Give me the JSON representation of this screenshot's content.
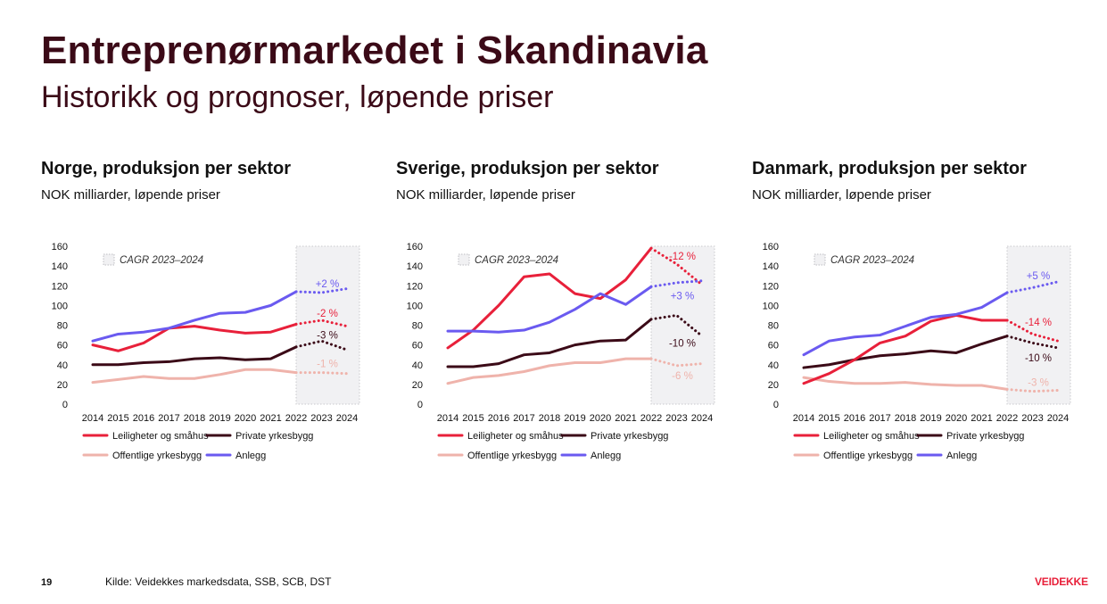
{
  "header": {
    "title": "Entreprenørmarkedet i Skandinavia",
    "subtitle": "Historikk og prognoser, løpende priser"
  },
  "footer": {
    "page_number": "19",
    "source": "Kilde: Veidekkes markedsdata, SSB, SCB, DST",
    "logo": "VEIDEKKE"
  },
  "colors": {
    "leiligheter": "#e8203a",
    "private": "#3b0a17",
    "offentlige": "#efb3ab",
    "anlegg": "#6a5af0",
    "forecast_band": "#f1f1f3"
  },
  "chart_data": [
    {
      "type": "line",
      "title": "Norge, produksjon per sektor",
      "subtitle": "NOK milliarder, løpende priser",
      "categories": [
        "2014",
        "2015",
        "2016",
        "2017",
        "2018",
        "2019",
        "2020",
        "2021",
        "2022",
        "2023",
        "2024"
      ],
      "ylim": [
        0,
        160
      ],
      "yticks": [
        0,
        20,
        40,
        60,
        80,
        100,
        120,
        140,
        160
      ],
      "forecast_from": "2022",
      "band_label": "CAGR 2023–2024",
      "series": [
        {
          "name": "Leiligheter og småhus",
          "key": "leiligheter",
          "values": [
            60,
            54,
            62,
            77,
            79,
            75,
            72,
            73,
            81,
            85,
            79
          ],
          "cagr": "-2 %",
          "cagr_y": 92
        },
        {
          "name": "Private yrkesbygg",
          "key": "private",
          "values": [
            40,
            40,
            42,
            43,
            46,
            47,
            45,
            46,
            58,
            64,
            55
          ],
          "cagr": "-3 %",
          "cagr_y": 70
        },
        {
          "name": "Offentlige yrkesbygg",
          "key": "offentlige",
          "values": [
            22,
            25,
            28,
            26,
            26,
            30,
            35,
            35,
            32,
            32,
            31
          ],
          "cagr": "-1 %",
          "cagr_y": 41
        },
        {
          "name": "Anlegg",
          "key": "anlegg",
          "values": [
            64,
            71,
            73,
            77,
            85,
            92,
            93,
            100,
            114,
            113,
            117
          ],
          "cagr": "+2 %",
          "cagr_y": 122
        }
      ],
      "legend": [
        "Leiligheter og småhus",
        "Private yrkesbygg",
        "Offentlige yrkesbygg",
        "Anlegg"
      ]
    },
    {
      "type": "line",
      "title": "Sverige, produksjon per sektor",
      "subtitle": "NOK milliarder, løpende priser",
      "categories": [
        "2014",
        "2015",
        "2016",
        "2017",
        "2018",
        "2019",
        "2020",
        "2021",
        "2022",
        "2023",
        "2024"
      ],
      "ylim": [
        0,
        160
      ],
      "yticks": [
        0,
        20,
        40,
        60,
        80,
        100,
        120,
        140,
        160
      ],
      "forecast_from": "2022",
      "band_label": "CAGR 2023–2024",
      "series": [
        {
          "name": "Leiligheter og småhus",
          "key": "leiligheter",
          "values": [
            57,
            75,
            100,
            129,
            132,
            112,
            107,
            126,
            158,
            142,
            121
          ],
          "cagr": "-12 %",
          "cagr_y": 150
        },
        {
          "name": "Private yrkesbygg",
          "key": "private",
          "values": [
            38,
            38,
            41,
            50,
            52,
            60,
            64,
            65,
            86,
            90,
            69
          ],
          "cagr": "-10 %",
          "cagr_y": 62
        },
        {
          "name": "Offentlige yrkesbygg",
          "key": "offentlige",
          "values": [
            21,
            27,
            29,
            33,
            39,
            42,
            42,
            46,
            46,
            39,
            41
          ],
          "cagr": "-6 %",
          "cagr_y": 29
        },
        {
          "name": "Anlegg",
          "key": "anlegg",
          "values": [
            74,
            74,
            73,
            75,
            83,
            96,
            112,
            101,
            119,
            123,
            125
          ],
          "cagr": "+3 %",
          "cagr_y": 110
        }
      ],
      "legend": [
        "Leiligheter og småhus",
        "Private yrkesbygg",
        "Offentlige yrkesbygg",
        "Anlegg"
      ]
    },
    {
      "type": "line",
      "title": "Danmark, produksjon per sektor",
      "subtitle": "NOK milliarder, løpende priser",
      "categories": [
        "2014",
        "2015",
        "2016",
        "2017",
        "2018",
        "2019",
        "2020",
        "2021",
        "2022",
        "2023",
        "2024"
      ],
      "ylim": [
        0,
        160
      ],
      "yticks": [
        0,
        20,
        40,
        60,
        80,
        100,
        120,
        140,
        160
      ],
      "forecast_from": "2022",
      "band_label": "CAGR 2023–2024",
      "series": [
        {
          "name": "Leiligheter og småhus",
          "key": "leiligheter",
          "values": [
            21,
            31,
            45,
            62,
            69,
            84,
            90,
            85,
            85,
            71,
            64
          ],
          "cagr": "-14 %",
          "cagr_y": 83
        },
        {
          "name": "Private yrkesbygg",
          "key": "private",
          "values": [
            37,
            40,
            45,
            49,
            51,
            54,
            52,
            61,
            69,
            62,
            57
          ],
          "cagr": "-10 %",
          "cagr_y": 47
        },
        {
          "name": "Offentlige yrkesbygg",
          "key": "offentlige",
          "values": [
            27,
            23,
            21,
            21,
            22,
            20,
            19,
            19,
            15,
            13,
            14
          ],
          "cagr": "-3 %",
          "cagr_y": 22
        },
        {
          "name": "Anlegg",
          "key": "anlegg",
          "values": [
            50,
            64,
            68,
            70,
            79,
            88,
            91,
            98,
            113,
            118,
            124
          ],
          "cagr": "+5 %",
          "cagr_y": 130
        }
      ],
      "legend": [
        "Leiligheter og småhus",
        "Private yrkesbygg",
        "Offentlige yrkesbygg",
        "Anlegg"
      ]
    }
  ]
}
